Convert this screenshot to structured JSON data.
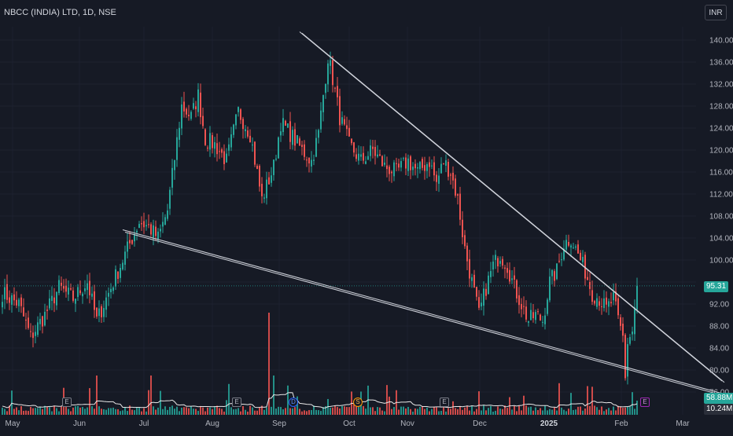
{
  "header": {
    "title": "NBCC (INDIA) LTD, 1D, NSE",
    "currency": "INR"
  },
  "colors": {
    "background": "#161a25",
    "up": "#26a69a",
    "down": "#ef5350",
    "trendline": "#d1d4dc",
    "price_line": "#26a69a"
  },
  "price_badge": "95.31",
  "volume_badges": [
    "58.88M",
    "10.24M"
  ],
  "events": [
    {
      "label": "E",
      "type": "earnings"
    },
    {
      "label": "E",
      "type": "earnings"
    },
    {
      "label": "D",
      "type": "dividend"
    },
    {
      "label": "S",
      "type": "split"
    },
    {
      "label": "E",
      "type": "earnings"
    },
    {
      "label": "E",
      "type": "earnings-upcoming"
    }
  ],
  "chart_data": {
    "type": "candlestick",
    "title": "NBCC (INDIA) LTD, 1D, NSE",
    "y_ticks": [
      76,
      80,
      84,
      88,
      92,
      96,
      100,
      104,
      108,
      112,
      116,
      120,
      124,
      128,
      132,
      136,
      140
    ],
    "y_tick_labels": [
      "76.00",
      "80.00",
      "84.00",
      "88.00",
      "92.00",
      "",
      "100.00",
      "104.00",
      "108.00",
      "112.00",
      "116.00",
      "120.00",
      "124.00",
      "128.00",
      "132.00",
      "136.00",
      "140.00"
    ],
    "ylim": [
      75,
      144
    ],
    "x_labels": [
      "May",
      "Jun",
      "Jul",
      "Aug",
      "Sep",
      "Oct",
      "Nov",
      "Dec",
      "2025",
      "Feb",
      "Mar"
    ],
    "last_price": 95.31,
    "keypoints": [
      [
        0,
        94
      ],
      [
        7,
        92
      ],
      [
        12,
        86
      ],
      [
        18,
        90
      ],
      [
        24,
        95
      ],
      [
        30,
        93
      ],
      [
        36,
        96
      ],
      [
        40,
        89
      ],
      [
        42,
        91
      ],
      [
        48,
        97
      ],
      [
        54,
        103
      ],
      [
        58,
        107
      ],
      [
        62,
        106
      ],
      [
        66,
        104
      ],
      [
        70,
        109
      ],
      [
        76,
        128
      ],
      [
        80,
        126
      ],
      [
        83,
        130
      ],
      [
        86,
        122
      ],
      [
        90,
        121
      ],
      [
        95,
        118
      ],
      [
        100,
        127
      ],
      [
        105,
        123
      ],
      [
        110,
        111
      ],
      [
        115,
        117
      ],
      [
        118,
        125
      ],
      [
        122,
        123
      ],
      [
        127,
        120
      ],
      [
        131,
        118
      ],
      [
        134,
        123
      ],
      [
        138,
        137
      ],
      [
        140,
        133
      ],
      [
        143,
        126
      ],
      [
        147,
        121
      ],
      [
        152,
        118
      ],
      [
        157,
        120
      ],
      [
        162,
        117
      ],
      [
        167,
        116
      ],
      [
        172,
        118
      ],
      [
        176,
        116
      ],
      [
        181,
        118
      ],
      [
        184,
        114
      ],
      [
        187,
        118
      ],
      [
        190,
        116
      ],
      [
        193,
        111
      ],
      [
        196,
        102
      ],
      [
        199,
        96
      ],
      [
        202,
        90
      ],
      [
        205,
        95
      ],
      [
        208,
        99
      ],
      [
        211,
        101
      ],
      [
        214,
        99
      ],
      [
        217,
        95
      ],
      [
        220,
        92
      ],
      [
        223,
        89
      ],
      [
        226,
        90
      ],
      [
        229,
        89
      ],
      [
        232,
        96
      ],
      [
        235,
        98
      ],
      [
        238,
        103
      ],
      [
        241,
        104
      ],
      [
        244,
        101
      ],
      [
        247,
        98
      ],
      [
        250,
        94
      ],
      [
        253,
        93
      ],
      [
        256,
        91
      ],
      [
        259,
        93
      ],
      [
        261,
        89
      ],
      [
        263,
        86
      ],
      [
        264,
        79
      ],
      [
        265,
        85
      ],
      [
        267,
        87
      ],
      [
        269,
        95.31
      ]
    ],
    "trendlines": [
      {
        "name": "upper",
        "from": [
          126,
          141.5
        ],
        "to": [
          305,
          78
        ]
      },
      {
        "name": "lower",
        "from": [
          51,
          105.5
        ],
        "to": [
          307,
          75.5
        ]
      }
    ]
  }
}
